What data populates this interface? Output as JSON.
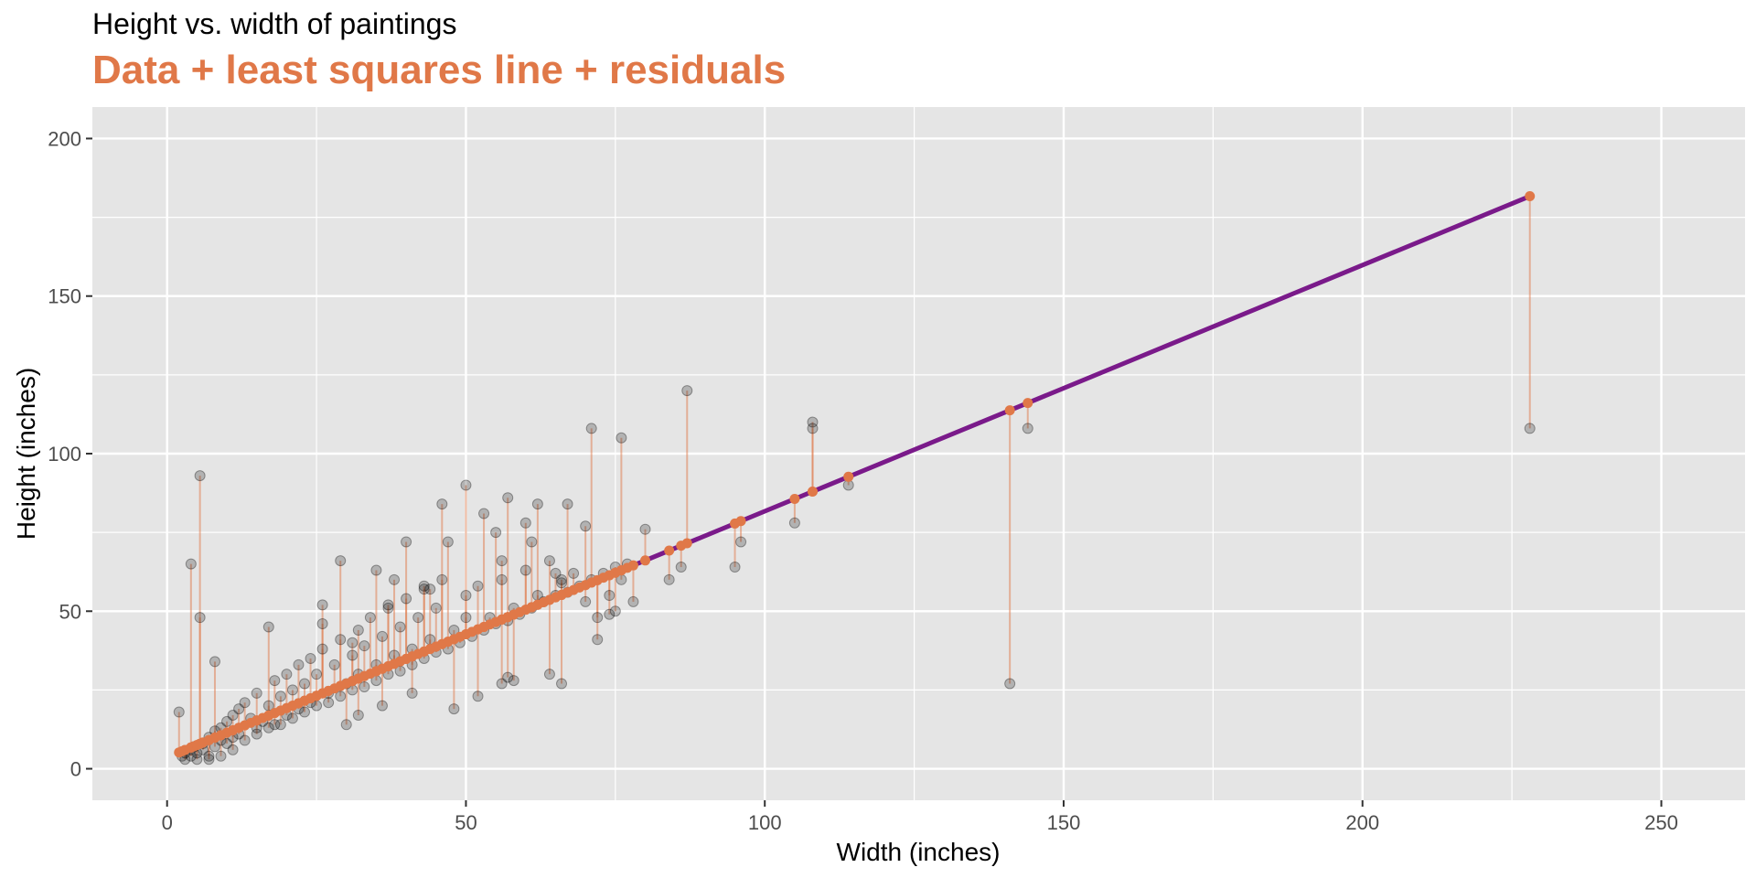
{
  "chart_data": {
    "type": "scatter",
    "title": "Height vs. width of paintings",
    "subtitle": "Data + least squares line + residuals",
    "xlabel": "Width (inches)",
    "ylabel": "Height (inches)",
    "xlim": [
      -12.5,
      264
    ],
    "ylim": [
      -10,
      210
    ],
    "x_ticks": [
      0,
      50,
      100,
      150,
      200,
      250
    ],
    "y_ticks": [
      0,
      50,
      100,
      150,
      200
    ],
    "x_tick_labels": [
      "0",
      "50",
      "100",
      "150",
      "200",
      "250"
    ],
    "y_tick_labels": [
      "0",
      "50",
      "100",
      "150",
      "200"
    ],
    "grid": true,
    "legend": "none",
    "colors": {
      "panel_background": "#e5e5e5",
      "gridline": "#ffffff",
      "data_point": "#000000",
      "fitted_point": "#e07848",
      "residual": "#e07848",
      "fit_line": "#7a1a8a",
      "subtitle": "#e07848"
    },
    "fit_line": {
      "intercept": 3.62,
      "slope": 0.781,
      "x_range": [
        2,
        228
      ]
    },
    "series": [
      {
        "x": [
          2,
          4,
          5.5,
          5.5,
          17,
          8,
          2.5,
          3,
          3,
          4,
          4,
          4.5,
          5,
          5,
          6,
          6,
          7,
          7,
          8,
          8,
          9,
          9,
          10,
          10,
          11,
          11,
          12,
          12,
          13,
          14,
          15,
          15,
          16,
          17,
          18,
          18,
          19,
          20,
          20,
          21,
          22,
          22,
          23,
          24,
          24,
          25,
          26,
          27,
          28,
          29,
          30,
          31,
          32,
          32,
          33,
          34,
          35,
          36,
          37,
          38,
          39,
          40,
          41,
          42,
          43,
          44,
          45,
          46,
          48,
          50,
          52,
          54,
          56,
          58,
          60,
          62,
          64,
          66,
          68,
          70,
          72,
          74,
          76,
          78,
          7,
          9,
          11,
          13,
          15,
          17,
          19,
          21,
          23,
          25,
          27,
          29,
          31,
          33,
          35,
          37,
          39,
          41,
          43,
          45,
          47,
          49,
          51,
          53,
          55,
          57,
          59,
          61,
          63,
          65,
          67,
          69,
          71,
          73,
          75,
          77,
          26,
          29,
          35,
          38,
          40,
          43,
          46,
          47,
          50,
          53,
          55,
          57,
          60,
          62,
          65,
          67,
          71,
          76,
          80,
          30,
          32,
          36,
          41,
          48,
          52,
          56,
          57,
          58,
          64,
          66,
          72,
          75,
          26,
          31,
          37,
          44,
          50,
          56,
          61,
          66,
          70,
          74,
          84,
          86,
          87,
          95,
          96,
          105,
          108,
          108,
          114,
          141,
          144,
          228
        ],
        "y": [
          18,
          65,
          93,
          48,
          45,
          34,
          4,
          3,
          5,
          6,
          4,
          7,
          5,
          3,
          8,
          6,
          10,
          4,
          12,
          7,
          13,
          9,
          15,
          8,
          17,
          10,
          19,
          11,
          21,
          16,
          24,
          13,
          15,
          20,
          28,
          14,
          23,
          30,
          17,
          25,
          33,
          19,
          27,
          35,
          21,
          30,
          38,
          24,
          33,
          41,
          27,
          36,
          44,
          30,
          39,
          48,
          33,
          42,
          51,
          36,
          45,
          54,
          38,
          48,
          57,
          41,
          51,
          60,
          44,
          55,
          58,
          48,
          60,
          51,
          63,
          55,
          66,
          59,
          62,
          53,
          48,
          55,
          60,
          53,
          3,
          4,
          6,
          9,
          11,
          13,
          14,
          16,
          18,
          20,
          21,
          23,
          25,
          26,
          28,
          30,
          31,
          33,
          35,
          37,
          38,
          40,
          42,
          44,
          46,
          47,
          49,
          51,
          53,
          55,
          56,
          58,
          60,
          62,
          64,
          65,
          52,
          66,
          63,
          60,
          72,
          58,
          84,
          72,
          90,
          81,
          75,
          86,
          78,
          84,
          62,
          84,
          108,
          105,
          76,
          14,
          17,
          20,
          24,
          19,
          23,
          27,
          29,
          28,
          30,
          27,
          41,
          50,
          46,
          40,
          52,
          57,
          48,
          66,
          72,
          60,
          77,
          49,
          60,
          64,
          120,
          64,
          72,
          78,
          110,
          108,
          90,
          27,
          108,
          108
        ]
      }
    ]
  }
}
